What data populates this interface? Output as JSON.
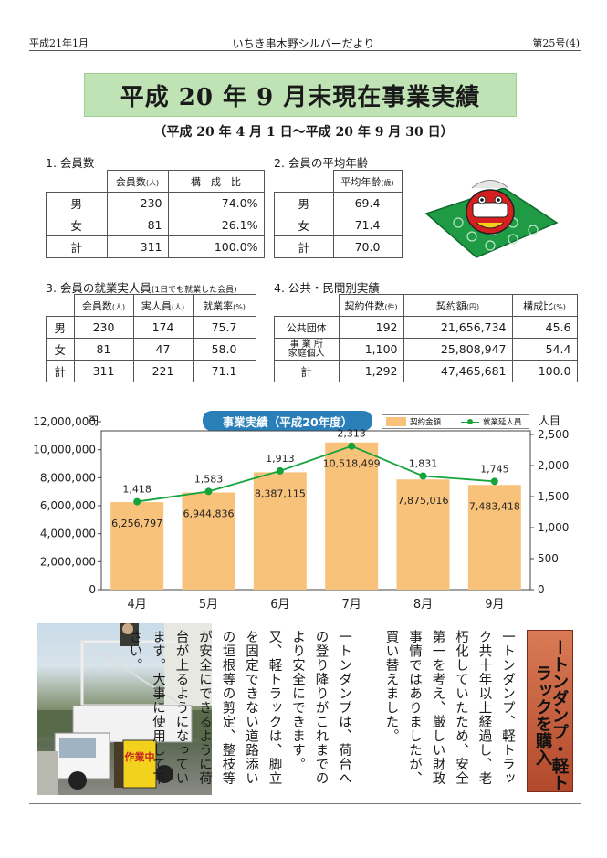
{
  "header": {
    "left": "平成21年1月",
    "center": "いちき串木野シルバーだより",
    "right": "第25号(4)"
  },
  "title": "平成 20 年 9 月末現在事業実績",
  "period": "（平成 20 年 4 月 1 日〜平成 20 年 9 月 30 日）",
  "sections": {
    "members": {
      "title": "1. 会員数",
      "headers": [
        "会員数",
        "(人)",
        "構　成　比"
      ],
      "rows": [
        {
          "label": "男",
          "count": "230",
          "ratio": "74.0%"
        },
        {
          "label": "女",
          "count": "81",
          "ratio": "26.1%"
        },
        {
          "label": "計",
          "count": "311",
          "ratio": "100.0%"
        }
      ]
    },
    "age": {
      "title": "2. 会員の平均年齢",
      "header": "平均年齢",
      "unit": "(歳)",
      "rows": [
        {
          "label": "男",
          "value": "69.4"
        },
        {
          "label": "女",
          "value": "71.4"
        },
        {
          "label": "計",
          "value": "70.0"
        }
      ]
    },
    "employment": {
      "title": "3. 会員の就業実人員",
      "note": "(1日でも就業した会員)",
      "headers": [
        {
          "label": "会員数",
          "unit": "(人)"
        },
        {
          "label": "実人員",
          "unit": "(人)"
        },
        {
          "label": "就業率",
          "unit": "(%)"
        }
      ],
      "rows": [
        {
          "label": "男",
          "members": "230",
          "actual": "174",
          "rate": "75.7"
        },
        {
          "label": "女",
          "members": "81",
          "actual": "47",
          "rate": "58.0"
        },
        {
          "label": "計",
          "members": "311",
          "actual": "221",
          "rate": "71.1"
        }
      ]
    },
    "contracts": {
      "title": "4. 公共・民間別実績",
      "headers": [
        {
          "label": "契約件数",
          "unit": "(件)"
        },
        {
          "label": "契約額",
          "unit": "(円)"
        },
        {
          "label": "構成比",
          "unit": "(%)"
        }
      ],
      "rows": [
        {
          "label": "公共団体",
          "label2": "",
          "count": "192",
          "amount": "21,656,734",
          "ratio": "45.6"
        },
        {
          "label": "事 業 所",
          "label2": "家庭個人",
          "count": "1,100",
          "amount": "25,808,947",
          "ratio": "54.4"
        },
        {
          "label": "計",
          "label2": "",
          "count": "1,292",
          "amount": "47,465,681",
          "ratio": "100.0"
        }
      ]
    }
  },
  "chart_data": {
    "type": "bar",
    "title": "事業実績（平成20年度）",
    "categories": [
      "4月",
      "5月",
      "6月",
      "7月",
      "8月",
      "9月"
    ],
    "series": [
      {
        "name": "契約金額",
        "type": "bar",
        "axis": "left",
        "color": "#f9c27b",
        "values": [
          6256797,
          6944836,
          8387115,
          10518499,
          7875016,
          7483418
        ],
        "labels": [
          "6,256,797",
          "6,944,836",
          "8,387,115",
          "10,518,499",
          "7,875,016",
          "7,483,418"
        ]
      },
      {
        "name": "就業延人員",
        "type": "line",
        "axis": "right",
        "color": "#15a33c",
        "values": [
          1418,
          1583,
          1913,
          2313,
          1831,
          1745
        ],
        "labels": [
          "1,418",
          "1,583",
          "1,913",
          "2,313",
          "1,831",
          "1,745"
        ]
      }
    ],
    "ylabel": "円",
    "y2label": "人目",
    "ylim": [
      0,
      12000000
    ],
    "y2lim": [
      0,
      2500
    ],
    "yticks": [
      "12,000,000",
      "10,000,000",
      "8,000,000",
      "6,000,000",
      "4,000,000",
      "2,000,000",
      "0"
    ],
    "y2ticks": [
      "2,500",
      "2,000",
      "1,500",
      "1,000",
      "500",
      "0"
    ],
    "legend": "top-right",
    "grid": false
  },
  "article": {
    "heading": "ートンダンプ・軽トラックを購入",
    "paragraphs": [
      "一トンダンプ、軽トラック共十年以上経過し、老朽化していたため、安全第一を考え、厳しい財政事情ではありましたが、買い替えました。",
      "一トンダンプは、荷台への登り降りがこれまでのより安全にできます。又、軽トラックは、脚立を固定できない道路添いの垣根等の剪定、整枝等が安全にできるように荷台が上るようになっています。大事に使用して下さい。"
    ],
    "sign": "作業中"
  },
  "colors": {
    "banner": "#bfe3b4",
    "bar": "#f9c27b",
    "line": "#15a33c",
    "chart_title_bg": "#2a7fb9",
    "article_heading_bg": "#c0573a"
  },
  "icons": [
    "shishimai-lion-illustration",
    "truck-photo"
  ]
}
